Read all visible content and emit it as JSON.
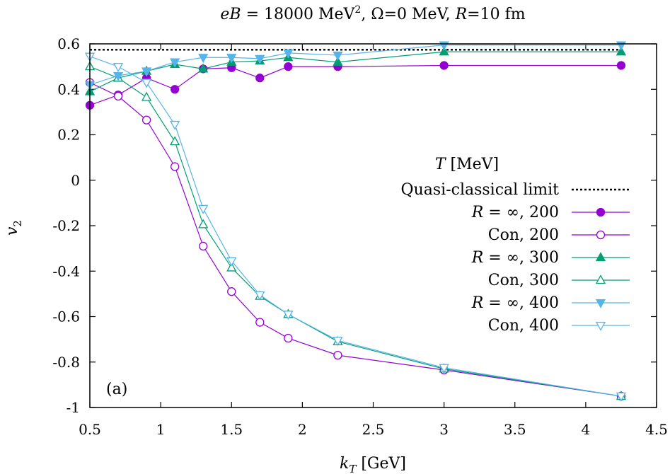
{
  "chart_data": {
    "type": "line",
    "title": "eB = 18000 MeV², Ω=0 MeV, R=10 fm",
    "xlabel": "k_T [GeV]",
    "ylabel": "v_2",
    "xlim": [
      0.5,
      4.5
    ],
    "ylim": [
      -1,
      0.6
    ],
    "xticks": [
      "0.5",
      "1",
      "1.5",
      "2",
      "2.5",
      "3",
      "3.5",
      "4",
      "4.5"
    ],
    "yticks": [
      "-1",
      "-0.8",
      "-0.6",
      "-0.4",
      "-0.2",
      "0",
      "0.2",
      "0.4",
      "0.6"
    ],
    "legend_title": "T [MeV]",
    "legend_position": "right, mid-height",
    "panel_label": "(a)",
    "grid": false,
    "reference_line": {
      "name": "Quasi-classical limit",
      "y": 0.574,
      "style": "dotted",
      "color": "#000000"
    },
    "x": [
      0.5,
      0.7,
      0.9,
      1.1,
      1.3,
      1.5,
      1.7,
      1.9,
      2.25,
      3.0,
      4.25
    ],
    "series": [
      {
        "name": "R = ∞, 200",
        "color": "#9400d3",
        "marker": "circle",
        "filled": true,
        "values": [
          0.33,
          0.375,
          0.45,
          0.4,
          0.49,
          0.495,
          0.45,
          0.5,
          0.5,
          0.505,
          0.505
        ]
      },
      {
        "name": "Con, 200",
        "color": "#9400d3",
        "marker": "circle",
        "filled": false,
        "values": [
          0.43,
          0.37,
          0.265,
          0.06,
          -0.29,
          -0.49,
          -0.625,
          -0.695,
          -0.77,
          -0.835,
          -0.95
        ]
      },
      {
        "name": "R = ∞, 300",
        "color": "#009e73",
        "marker": "triangle-up",
        "filled": true,
        "values": [
          0.39,
          0.45,
          0.48,
          0.51,
          0.49,
          0.52,
          0.525,
          0.54,
          0.52,
          0.565,
          0.565
        ]
      },
      {
        "name": "Con, 300",
        "color": "#009e73",
        "marker": "triangle-up",
        "filled": false,
        "values": [
          0.5,
          0.45,
          0.365,
          0.17,
          -0.195,
          -0.385,
          -0.51,
          -0.59,
          -0.71,
          -0.83,
          -0.95
        ]
      },
      {
        "name": "R = ∞, 400",
        "color": "#56b4e9",
        "marker": "triangle-down",
        "filled": true,
        "values": [
          0.42,
          0.46,
          0.48,
          0.52,
          0.54,
          0.54,
          0.535,
          0.56,
          0.55,
          0.595,
          0.595
        ]
      },
      {
        "name": "Con, 400",
        "color": "#56b4e9",
        "marker": "triangle-down",
        "filled": false,
        "values": [
          0.545,
          0.5,
          0.43,
          0.245,
          -0.125,
          -0.355,
          -0.505,
          -0.59,
          -0.705,
          -0.825,
          -0.95
        ]
      }
    ]
  }
}
